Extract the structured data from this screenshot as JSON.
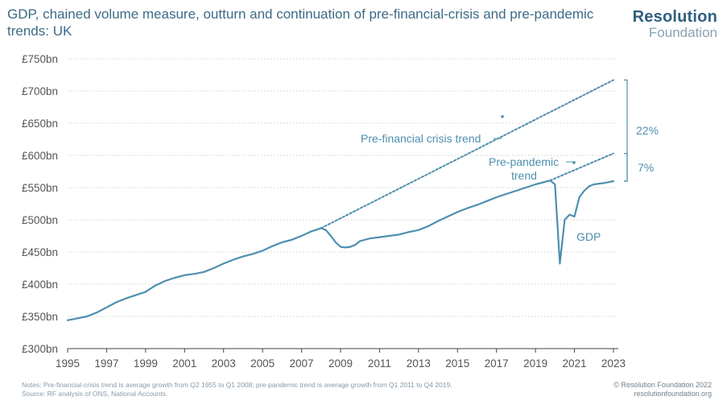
{
  "header": {
    "title": "GDP, chained volume measure, outturn and continuation of pre-financial-crisis and pre-pandemic trends: UK"
  },
  "brand": {
    "line1": "Resolution",
    "line2": "Foundation"
  },
  "footer": {
    "notes": "Notes: Pre-financial-crisis trend is average growth from Q2 1955 to Q1 2008; pre-pandemic trend is average growth from Q1 2011 to Q4 2019.",
    "source": "Source: RF analysis of ONS, National Accounts.",
    "copyright": "© Resolution Foundation 2022",
    "url": "resolutionfoundation.org"
  },
  "colors": {
    "series": "#4e8fb0",
    "title": "#3d6a86",
    "axis": "#555555",
    "grid": "#cfcfcf"
  },
  "chart_data": {
    "type": "line",
    "title": "GDP, chained volume measure, outturn and continuation of pre-financial-crisis and pre-pandemic trends: UK",
    "xlabel": "",
    "ylabel": "",
    "xlim": [
      1995,
      2023.25
    ],
    "ylim": [
      300,
      750
    ],
    "grid": true,
    "x_ticks": [
      "1995",
      "1997",
      "1999",
      "2001",
      "2003",
      "2005",
      "2007",
      "2009",
      "2011",
      "2013",
      "2015",
      "2017",
      "2019",
      "2021",
      "2023"
    ],
    "y_ticks": [
      "£300bn",
      "£350bn",
      "£400bn",
      "£450bn",
      "£500bn",
      "£550bn",
      "£600bn",
      "£650bn",
      "£700bn",
      "£750bn"
    ],
    "series": [
      {
        "name": "GDP",
        "style": "solid",
        "x": [
          1995.0,
          1995.5,
          1996.0,
          1996.5,
          1997.0,
          1997.5,
          1998.0,
          1998.5,
          1999.0,
          1999.5,
          2000.0,
          2000.5,
          2001.0,
          2001.5,
          2002.0,
          2002.5,
          2003.0,
          2003.5,
          2004.0,
          2004.5,
          2005.0,
          2005.5,
          2006.0,
          2006.5,
          2007.0,
          2007.5,
          2008.0,
          2008.25,
          2008.5,
          2008.75,
          2009.0,
          2009.25,
          2009.5,
          2009.75,
          2010.0,
          2010.5,
          2011.0,
          2011.5,
          2012.0,
          2012.5,
          2013.0,
          2013.5,
          2014.0,
          2014.5,
          2015.0,
          2015.5,
          2016.0,
          2016.5,
          2017.0,
          2017.5,
          2018.0,
          2018.5,
          2019.0,
          2019.5,
          2019.75,
          2020.0,
          2020.25,
          2020.5,
          2020.75,
          2021.0,
          2021.25,
          2021.5,
          2021.75,
          2022.0,
          2022.25,
          2022.5,
          2023.0
        ],
        "values": [
          344,
          347,
          350,
          356,
          364,
          372,
          378,
          383,
          388,
          398,
          405,
          410,
          414,
          416,
          419,
          425,
          432,
          438,
          443,
          447,
          452,
          459,
          465,
          469,
          475,
          482,
          487,
          484,
          475,
          465,
          458,
          457,
          458,
          461,
          467,
          471,
          473,
          475,
          477,
          481,
          484,
          490,
          498,
          505,
          512,
          518,
          523,
          529,
          535,
          540,
          545,
          550,
          555,
          559,
          561,
          555,
          432,
          500,
          508,
          505,
          535,
          545,
          552,
          555,
          556,
          557,
          560
        ]
      },
      {
        "name": "Pre-financial crisis trend",
        "style": "dashed",
        "x": [
          2008.0,
          2023.0
        ],
        "values": [
          487,
          717
        ]
      },
      {
        "name": "Pre-pandemic trend",
        "style": "dashed",
        "x": [
          2019.75,
          2023.0
        ],
        "values": [
          561,
          603
        ]
      }
    ],
    "annotations": {
      "series_labels": {
        "gdp": "GDP",
        "pre_crisis_trend": "Pre-financial crisis trend",
        "pre_pandemic_line1": "Pre-pandemic",
        "pre_pandemic_line2": "trend"
      },
      "gaps": [
        {
          "label": "22%",
          "from": 560,
          "to": 717
        },
        {
          "label": "7%",
          "from": 560,
          "to": 603
        }
      ]
    }
  }
}
